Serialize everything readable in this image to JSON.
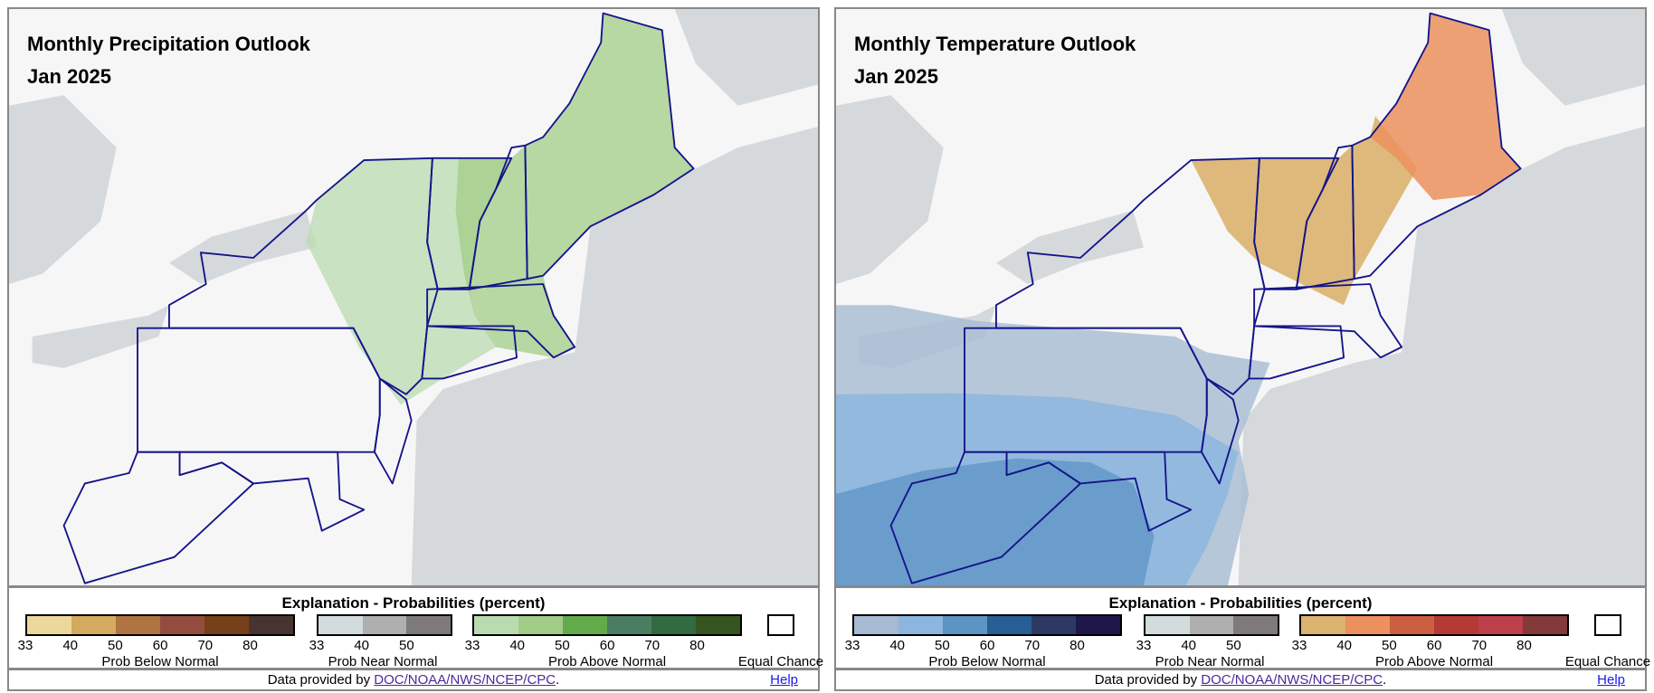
{
  "panels": [
    {
      "title": "Monthly Precipitation Outlook",
      "date": "Jan 2025",
      "legend": {
        "title": "Explanation - Probabilities (percent)",
        "below": {
          "label": "Prob Below Normal",
          "ticks": [
            "33",
            "40",
            "50",
            "60",
            "70",
            "80"
          ],
          "colors": [
            "#ecd89a",
            "#d4aa5e",
            "#b07440",
            "#944c3e",
            "#764018",
            "#473431"
          ]
        },
        "near": {
          "label": "Prob Near Normal",
          "ticks": [
            "33",
            "40",
            "50"
          ],
          "colors": [
            "#d3dcdd",
            "#b0afb0",
            "#7e7a7b"
          ]
        },
        "above": {
          "label": "Prob Above Normal",
          "ticks": [
            "33",
            "40",
            "50",
            "60",
            "70",
            "80"
          ],
          "colors": [
            "#badbb0",
            "#a1cc87",
            "#62ab4a",
            "#4b7d62",
            "#326b42",
            "#35541e"
          ]
        },
        "equal": "Equal Chance"
      },
      "footer": {
        "prefix": "Data provided by ",
        "link": "DOC/NOAA/NWS/NCEP/CPC",
        "suffix": ".",
        "help": "Help"
      }
    },
    {
      "title": "Monthly Temperature Outlook",
      "date": "Jan 2025",
      "legend": {
        "title": "Explanation - Probabilities (percent)",
        "below": {
          "label": "Prob Below Normal",
          "ticks": [
            "33",
            "40",
            "50",
            "60",
            "70",
            "80"
          ],
          "colors": [
            "#a6bbd3",
            "#8cb5df",
            "#5c94c4",
            "#285e96",
            "#2e3862",
            "#1f174a"
          ]
        },
        "near": {
          "label": "Prob Near Normal",
          "ticks": [
            "33",
            "40",
            "50"
          ],
          "colors": [
            "#d3dcdd",
            "#b0afb0",
            "#7e7a7b"
          ]
        },
        "above": {
          "label": "Prob Above Normal",
          "ticks": [
            "33",
            "40",
            "50",
            "60",
            "70",
            "80"
          ],
          "colors": [
            "#dbb36e",
            "#ec915e",
            "#cb5f40",
            "#b53a35",
            "#bd3f4a",
            "#843a3a"
          ]
        },
        "equal": "Equal Chance"
      },
      "footer": {
        "prefix": "Data provided by ",
        "link": "DOC/NOAA/NWS/NCEP/CPC",
        "suffix": ".",
        "help": "Help"
      }
    }
  ]
}
